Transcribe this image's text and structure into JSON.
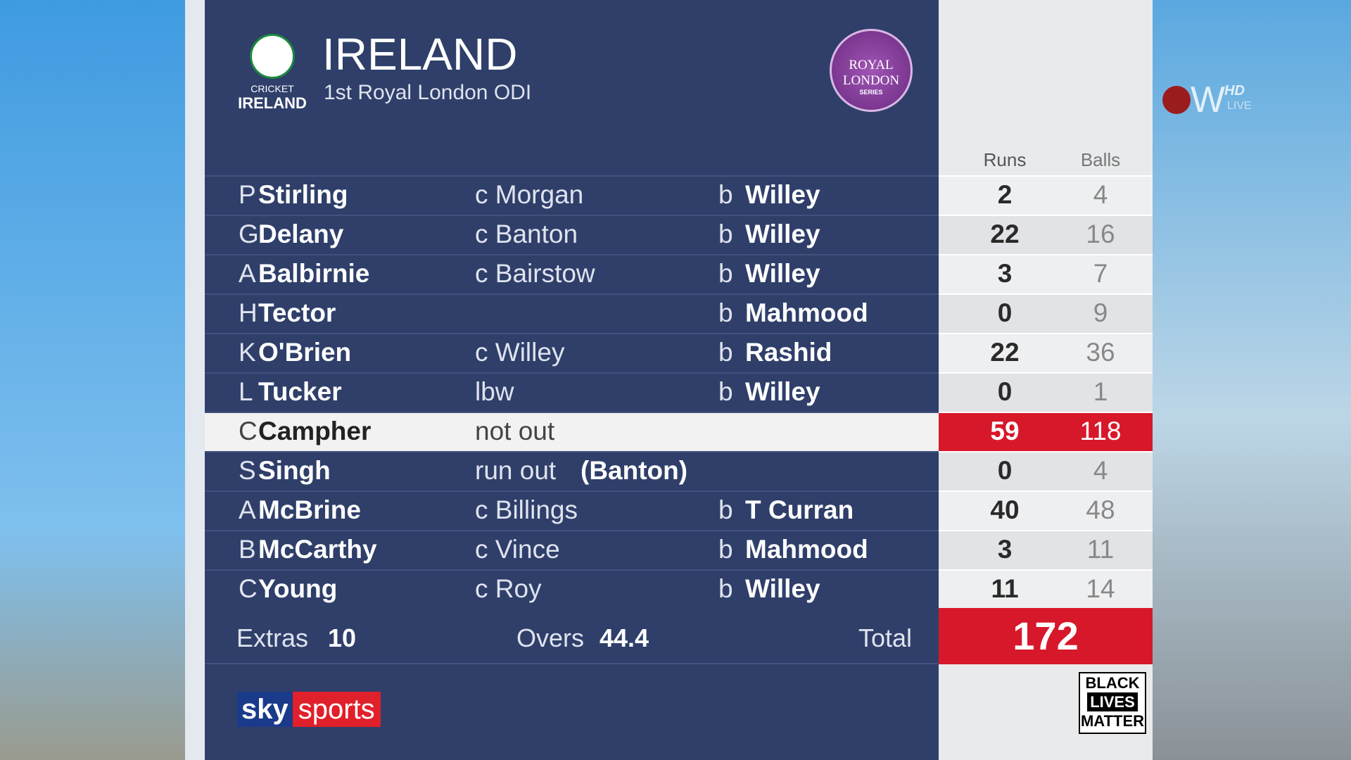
{
  "header": {
    "logo_top": "CRICKET",
    "logo_bottom": "IRELAND",
    "title": "IRELAND",
    "subtitle": "1st Royal London ODI",
    "badge": [
      "ROYAL",
      "LONDON",
      "SERIES"
    ]
  },
  "watermark": {
    "text": "W",
    "tag": "HD",
    "sub": "LIVE"
  },
  "columns": [
    "Runs",
    "Balls"
  ],
  "rows": [
    {
      "initial": "P",
      "name": "Stirling",
      "dismissal": "c Morgan",
      "bowled": "b",
      "bowler": "Willey",
      "runs": 2,
      "balls": 4
    },
    {
      "initial": "G",
      "name": "Delany",
      "dismissal": "c Banton",
      "bowled": "b",
      "bowler": "Willey",
      "runs": 22,
      "balls": 16
    },
    {
      "initial": "A",
      "name": "Balbirnie",
      "dismissal": "c Bairstow",
      "bowled": "b",
      "bowler": "Willey",
      "runs": 3,
      "balls": 7
    },
    {
      "initial": "H",
      "name": "Tector",
      "bowled": "b",
      "bowler": "Mahmood",
      "runs": 0,
      "balls": 9
    },
    {
      "initial": "K",
      "name": "O'Brien",
      "dismissal": "c Willey",
      "bowled": "b",
      "bowler": "Rashid",
      "runs": 22,
      "balls": 36
    },
    {
      "initial": "L",
      "name": "Tucker",
      "dismissal": "lbw",
      "bowled": "b",
      "bowler": "Willey",
      "runs": 0,
      "balls": 1
    },
    {
      "initial": "C",
      "name": "Campher",
      "dismissal": "not out",
      "runs": 59,
      "balls": 118,
      "highlight": true
    },
    {
      "initial": "S",
      "name": "Singh",
      "dismissal": "run out",
      "fielder": "(Banton)",
      "runs": 0,
      "balls": 4
    },
    {
      "initial": "A",
      "name": "McBrine",
      "dismissal": "c Billings",
      "bowled": "b",
      "bowler": "T Curran",
      "runs": 40,
      "balls": 48
    },
    {
      "initial": "B",
      "name": "McCarthy",
      "dismissal": "c Vince",
      "bowled": "b",
      "bowler": "Mahmood",
      "runs": 3,
      "balls": 11
    },
    {
      "initial": "C",
      "name": "Young",
      "dismissal": "c Roy",
      "bowled": "b",
      "bowler": "Willey",
      "runs": 11,
      "balls": 14
    }
  ],
  "footer": {
    "extras_label": "Extras",
    "extras": 10,
    "overs_label": "Overs",
    "overs": 44.4,
    "total_label": "Total",
    "total": 172
  },
  "branding": {
    "sky": "sky",
    "sports": "sports",
    "blm": [
      "BLACK",
      "LIVES",
      "MATTER"
    ]
  }
}
